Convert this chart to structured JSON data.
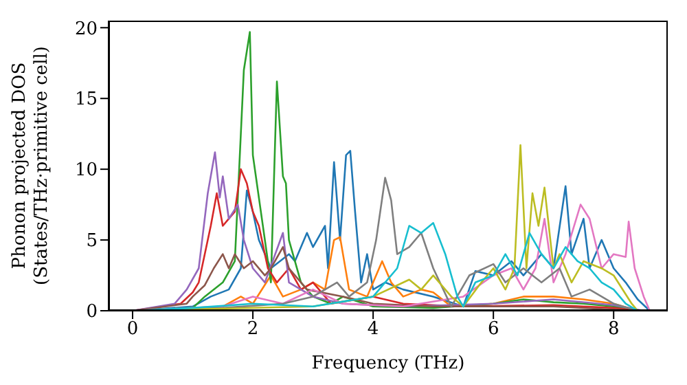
{
  "chart_data": {
    "type": "line",
    "xlabel": "Frequency (THz)",
    "ylabel": "Phonon projected DOS\n(States/THz·primitive cell)",
    "xlim": [
      -0.4,
      8.9
    ],
    "ylim": [
      0,
      20.5
    ],
    "xticks": [
      0,
      2,
      4,
      6,
      8
    ],
    "yticks": [
      0,
      5,
      10,
      15,
      20
    ],
    "grid": false,
    "marker": "none",
    "line_style": "solid",
    "series": [
      {
        "color": "#1f77b4",
        "x": [
          0,
          1.0,
          1.3,
          1.6,
          1.8,
          1.9,
          2.0,
          2.1,
          2.3,
          2.6,
          2.7,
          2.9,
          3.0,
          3.2,
          3.25,
          3.35,
          3.45,
          3.55,
          3.62,
          3.7,
          3.8,
          3.9,
          4.0,
          4.2,
          4.5,
          5.0,
          5.5,
          5.7,
          6.0,
          6.3,
          6.5,
          6.8,
          7.0,
          7.2,
          7.3,
          7.5,
          7.6,
          7.8,
          8.0,
          8.2,
          8.4,
          8.6
        ],
        "values": [
          0,
          0.3,
          1,
          1.5,
          3,
          8.5,
          7,
          5,
          3,
          4,
          3.5,
          5.5,
          4.5,
          6,
          3,
          10.5,
          5,
          11,
          11.3,
          7,
          2,
          4,
          1.5,
          2,
          1.5,
          1,
          0.3,
          2.8,
          2.5,
          3.5,
          2.5,
          4,
          3,
          8.8,
          4,
          6.5,
          3,
          5,
          3,
          2,
          0.8,
          0
        ]
      },
      {
        "color": "#ff7f0e",
        "x": [
          0,
          1.5,
          1.8,
          2.0,
          2.3,
          2.5,
          2.8,
          3.0,
          3.2,
          3.35,
          3.45,
          3.6,
          3.9,
          4.0,
          4.15,
          4.3,
          4.5,
          4.8,
          5.0,
          5.3,
          6.0,
          6.5,
          7.0,
          7.5,
          8.0,
          8.4
        ],
        "values": [
          0,
          0.3,
          1,
          0.5,
          2.5,
          1,
          1.5,
          2,
          1.5,
          5,
          5.2,
          1.5,
          1,
          2,
          3.5,
          2,
          1,
          1.5,
          1.3,
          0.3,
          0.5,
          1,
          1,
          0.8,
          0.5,
          0
        ]
      },
      {
        "color": "#2ca02c",
        "x": [
          0,
          1.0,
          1.2,
          1.5,
          1.7,
          1.85,
          1.95,
          2.0,
          2.1,
          2.3,
          2.4,
          2.5,
          2.55,
          2.6,
          2.8,
          3.0,
          3.3,
          3.5,
          4.0,
          5.0,
          6.0,
          6.5,
          7.0,
          7.5,
          8.0,
          8.4
        ],
        "values": [
          0,
          0.2,
          1,
          2,
          3.5,
          17,
          19.7,
          11,
          8,
          2,
          16.2,
          9.5,
          9,
          5,
          2,
          1,
          0.5,
          1,
          0.3,
          0.2,
          0.5,
          0.8,
          0.6,
          0.5,
          0.3,
          0
        ]
      },
      {
        "color": "#d62728",
        "x": [
          0,
          0.8,
          1.0,
          1.1,
          1.2,
          1.3,
          1.4,
          1.5,
          1.6,
          1.7,
          1.8,
          1.9,
          2.0,
          2.1,
          2.25,
          2.4,
          2.6,
          2.8,
          3.0,
          3.3,
          4.0,
          4.5,
          5.5,
          7.0,
          8.0,
          8.4
        ],
        "values": [
          0,
          0.5,
          1.3,
          2,
          4,
          6,
          8.3,
          6,
          6.5,
          7,
          10,
          9,
          7,
          6,
          3,
          2,
          3,
          1.5,
          2,
          0.5,
          1,
          0.5,
          0.3,
          0.4,
          0.2,
          0
        ]
      },
      {
        "color": "#9467bd",
        "x": [
          0,
          0.7,
          0.9,
          1.1,
          1.25,
          1.37,
          1.45,
          1.5,
          1.6,
          1.75,
          1.85,
          2.0,
          2.2,
          2.5,
          2.6,
          3.0,
          3.5,
          4.5,
          6.0,
          7.0,
          8.0,
          8.5
        ],
        "values": [
          0,
          0.5,
          1.5,
          3,
          8.3,
          11.2,
          8,
          9.5,
          6.5,
          7.5,
          5,
          3,
          2,
          5.5,
          2,
          1,
          0.5,
          0.3,
          0.5,
          0.8,
          0.4,
          0
        ]
      },
      {
        "color": "#8c564b",
        "x": [
          0,
          0.9,
          1.0,
          1.2,
          1.35,
          1.5,
          1.6,
          1.7,
          1.85,
          2.0,
          2.2,
          2.3,
          2.5,
          2.6,
          2.9,
          3.5,
          4.0,
          5.0,
          7.0,
          8.4
        ],
        "values": [
          0,
          0.5,
          1,
          1.8,
          3,
          4,
          3,
          4,
          3,
          3.5,
          2.5,
          3,
          4.5,
          3,
          1.5,
          1,
          0.5,
          0.3,
          0.3,
          0
        ]
      },
      {
        "color": "#e377c2",
        "x": [
          0,
          1.5,
          2.0,
          2.5,
          3.0,
          3.5,
          4.5,
          5.5,
          6.0,
          6.3,
          6.5,
          6.7,
          6.85,
          7.0,
          7.2,
          7.45,
          7.6,
          7.8,
          8.0,
          8.2,
          8.25,
          8.35,
          8.5,
          8.6
        ],
        "values": [
          0,
          0.3,
          1,
          0.5,
          1.5,
          0.5,
          0.3,
          1,
          2.5,
          3,
          1.5,
          3,
          6.5,
          2,
          4,
          7.5,
          6.5,
          3,
          4,
          3.8,
          6.3,
          3,
          1,
          0
        ]
      },
      {
        "color": "#7f7f7f",
        "x": [
          0,
          1.5,
          2.5,
          3.0,
          3.4,
          3.6,
          3.9,
          4.05,
          4.2,
          4.3,
          4.4,
          4.6,
          4.8,
          5.0,
          5.3,
          5.6,
          6.0,
          6.2,
          6.5,
          6.8,
          7.1,
          7.3,
          7.6,
          8.0,
          8.4
        ],
        "values": [
          0,
          0.2,
          0.5,
          1,
          2,
          1,
          2,
          5,
          9.4,
          7.8,
          4,
          4.5,
          5.5,
          3,
          0.3,
          2.5,
          3.3,
          2,
          3,
          2,
          3,
          1,
          1.5,
          0.5,
          0
        ]
      },
      {
        "color": "#bcbd22",
        "x": [
          0,
          3.0,
          4.0,
          4.6,
          4.8,
          5.0,
          5.3,
          5.5,
          5.8,
          6.0,
          6.2,
          6.35,
          6.45,
          6.55,
          6.65,
          6.75,
          6.85,
          7.0,
          7.1,
          7.3,
          7.5,
          7.8,
          8.0,
          8.3,
          8.4
        ],
        "values": [
          0,
          0.3,
          1,
          2.2,
          1.5,
          2.5,
          1,
          0.3,
          2,
          3,
          1.5,
          3,
          11.7,
          3,
          8.3,
          6,
          8.7,
          3,
          4,
          2,
          3.5,
          3,
          2.5,
          0.5,
          0
        ]
      },
      {
        "color": "#17becf",
        "x": [
          0,
          1.0,
          2.0,
          3.0,
          4.0,
          4.4,
          4.6,
          4.8,
          5.0,
          5.2,
          5.4,
          5.5,
          5.7,
          6.0,
          6.2,
          6.4,
          6.6,
          6.8,
          7.0,
          7.2,
          7.4,
          7.6,
          7.8,
          8.0,
          8.2,
          8.4
        ],
        "values": [
          0,
          0.2,
          0.5,
          0.3,
          1,
          3,
          6,
          5.5,
          6.2,
          4,
          1,
          0.3,
          2,
          2.5,
          4,
          2.5,
          5.5,
          4,
          3,
          4.5,
          3.5,
          3,
          2,
          1.5,
          0.5,
          0
        ]
      }
    ]
  }
}
